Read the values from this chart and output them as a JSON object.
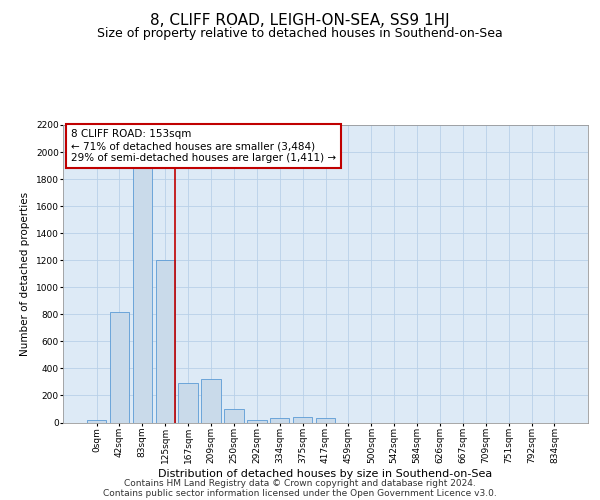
{
  "title": "8, CLIFF ROAD, LEIGH-ON-SEA, SS9 1HJ",
  "subtitle": "Size of property relative to detached houses in Southend-on-Sea",
  "xlabel": "Distribution of detached houses by size in Southend-on-Sea",
  "ylabel": "Number of detached properties",
  "bar_categories": [
    "0sqm",
    "42sqm",
    "83sqm",
    "125sqm",
    "167sqm",
    "209sqm",
    "250sqm",
    "292sqm",
    "334sqm",
    "375sqm",
    "417sqm",
    "459sqm",
    "500sqm",
    "542sqm",
    "584sqm",
    "626sqm",
    "667sqm",
    "709sqm",
    "751sqm",
    "792sqm",
    "834sqm"
  ],
  "bar_values": [
    20,
    820,
    1900,
    1200,
    290,
    320,
    100,
    20,
    30,
    40,
    30,
    0,
    0,
    0,
    0,
    0,
    0,
    0,
    0,
    0,
    0
  ],
  "bar_color": "#c9daea",
  "bar_edge_color": "#5b9bd5",
  "grid_color": "#b8d0e8",
  "background_color": "#ddeaf6",
  "annotation_box_color": "#c00000",
  "property_line_color": "#c00000",
  "property_bin_index": 3,
  "annotation_text": "8 CLIFF ROAD: 153sqm\n← 71% of detached houses are smaller (3,484)\n29% of semi-detached houses are larger (1,411) →",
  "ylim": [
    0,
    2200
  ],
  "yticks": [
    0,
    200,
    400,
    600,
    800,
    1000,
    1200,
    1400,
    1600,
    1800,
    2000,
    2200
  ],
  "footer_line1": "Contains HM Land Registry data © Crown copyright and database right 2024.",
  "footer_line2": "Contains public sector information licensed under the Open Government Licence v3.0.",
  "title_fontsize": 11,
  "subtitle_fontsize": 9,
  "annotation_fontsize": 7.5,
  "footer_fontsize": 6.5,
  "ylabel_fontsize": 7.5,
  "xlabel_fontsize": 8,
  "tick_fontsize": 6.5
}
